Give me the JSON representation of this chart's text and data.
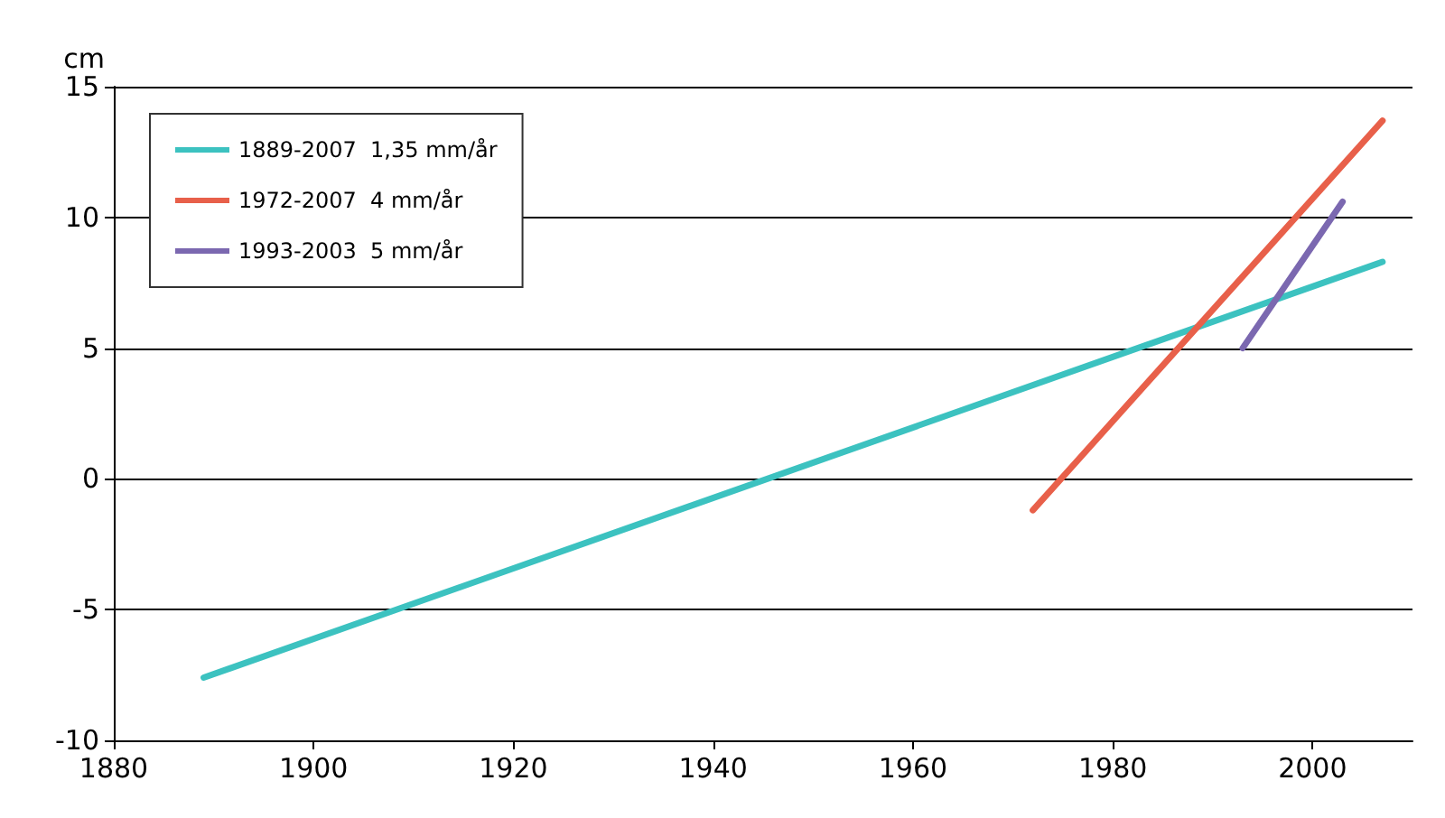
{
  "chart_data": {
    "type": "line",
    "ylabel": "cm",
    "xlim": [
      1880,
      2010
    ],
    "xticks": [
      1880,
      1900,
      1920,
      1940,
      1960,
      1980,
      2000
    ],
    "ylim": [
      -10,
      15
    ],
    "yticks": [
      -10,
      -5,
      0,
      5,
      10,
      15
    ],
    "grid": "y",
    "legend": "top left",
    "marker": "none",
    "line_style": "solid",
    "series": [
      {
        "name": "1889-2007  1,35 mm/år",
        "color": "#3cc2c0",
        "x": [
          1889,
          2007
        ],
        "values": [
          -7.6,
          8.3
        ]
      },
      {
        "name": "1972-2007  4 mm/år",
        "color": "#e8604a",
        "x": [
          1972,
          2007
        ],
        "values": [
          -1.2,
          13.7
        ]
      },
      {
        "name": "1993-2003  5 mm/år",
        "color": "#7b68b0",
        "x": [
          1993,
          2003
        ],
        "values": [
          5.0,
          10.6
        ]
      }
    ]
  }
}
